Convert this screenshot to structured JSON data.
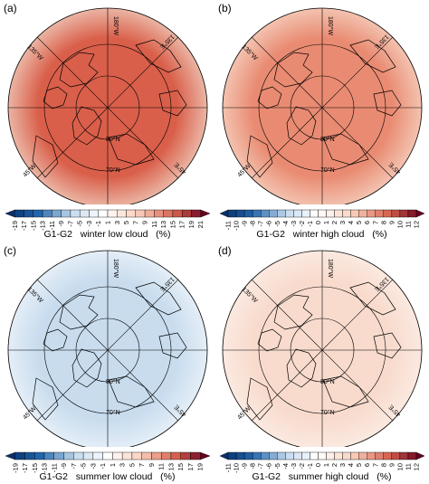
{
  "colors": {
    "deep_blue": "#08306b",
    "blue": "#2166ac",
    "light_blue": "#c6dbef",
    "white": "#ffffff",
    "light_red": "#fcd3c1",
    "red": "#d6604d",
    "deep_red": "#67001f"
  },
  "panels": [
    {
      "id": "a",
      "label": "(a)",
      "title": "G1-G2   winter low cloud   (%)",
      "fill": "#d95f4a",
      "rim": "#ebb5a4",
      "ticks": [
        "-19",
        "-17",
        "-15",
        "-13",
        "-11",
        "-9",
        "-7",
        "-5",
        "-3",
        "-1",
        "1",
        "3",
        "5",
        "7",
        "9",
        "11",
        "13",
        "15",
        "17",
        "19",
        "21"
      ],
      "colorbar": {
        "low": -19,
        "high": 21,
        "center": 0
      }
    },
    {
      "id": "b",
      "label": "(b)",
      "title": "G1-G2   winter high cloud   (%)",
      "fill": "#e98b72",
      "rim": "#f3c3b0",
      "ticks": [
        "-11",
        "-10",
        "-9",
        "-8",
        "-7",
        "-6",
        "-5",
        "-4",
        "-3",
        "-2",
        "-1",
        "0",
        "1",
        "2",
        "3",
        "4",
        "5",
        "6",
        "7",
        "8",
        "9",
        "10",
        "11",
        "12"
      ],
      "colorbar": {
        "low": -11,
        "high": 12,
        "center": 0
      }
    },
    {
      "id": "c",
      "label": "(c)",
      "title": "G1-G2   summer low cloud   (%)",
      "fill": "#c8dcee",
      "rim": "#e4eef7",
      "ticks": [
        "-19",
        "-17",
        "-15",
        "-13",
        "-11",
        "-9",
        "-7",
        "-5",
        "-3",
        "-1",
        "1",
        "3",
        "5",
        "7",
        "9",
        "11",
        "13",
        "15",
        "17",
        "19"
      ],
      "colorbar": {
        "low": -19,
        "high": 19,
        "center": 0
      }
    },
    {
      "id": "d",
      "label": "(d)",
      "title": "G1-G2   summer high cloud   (%)",
      "fill": "#f8dbcd",
      "rim": "#fbe9e0",
      "ticks": [
        "-11",
        "-10",
        "-9",
        "-8",
        "-7",
        "-6",
        "-5",
        "-4",
        "-3",
        "-2",
        "-1",
        "0",
        "1",
        "2",
        "3",
        "4",
        "5",
        "6",
        "7",
        "8",
        "9",
        "10",
        "11",
        "12"
      ],
      "colorbar": {
        "low": -11,
        "high": 12,
        "center": 0
      }
    }
  ],
  "map_labels": {
    "lon_180": "180°W",
    "lon_135w": "135°W",
    "lon_135e": "135°E",
    "lon_45w": "45°W",
    "lon_45e": "45°E",
    "lat_80": "80°N",
    "lat_70": "70°N"
  }
}
